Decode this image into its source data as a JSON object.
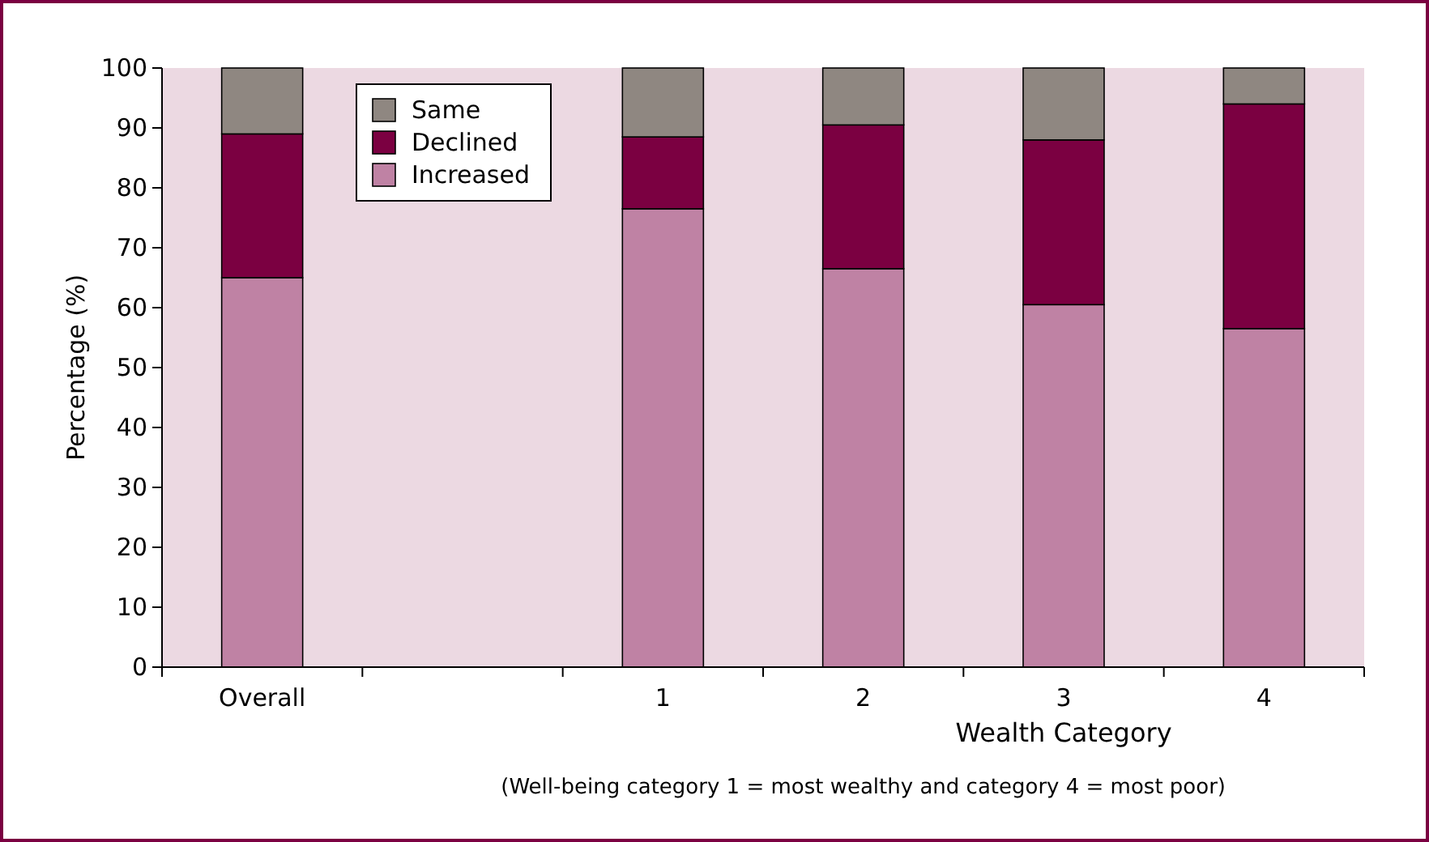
{
  "chart_data": {
    "type": "bar",
    "stacked": true,
    "xlabel": "Wealth Category",
    "ylabel": "Percentage (%)",
    "categories": [
      "Overall",
      null,
      "1",
      "2",
      "3",
      "4"
    ],
    "series": [
      {
        "name": "Increased",
        "color": "#bf82a4",
        "values": [
          65,
          null,
          76.5,
          66.5,
          60.5,
          56.5
        ]
      },
      {
        "name": "Declined",
        "color": "#7b0041",
        "values": [
          24,
          null,
          12,
          24,
          27.5,
          37.5
        ]
      },
      {
        "name": "Same",
        "color": "#8f8781",
        "values": [
          11,
          null,
          11.5,
          9.5,
          12,
          6
        ]
      }
    ],
    "ylim": [
      0,
      100
    ],
    "yticks": [
      0,
      10,
      20,
      30,
      40,
      50,
      60,
      70,
      80,
      90,
      100
    ],
    "grid": false,
    "legend": "top left",
    "annotations": [
      "(Well-being category 1 = most wealthy and category 4 = most poor)"
    ]
  }
}
